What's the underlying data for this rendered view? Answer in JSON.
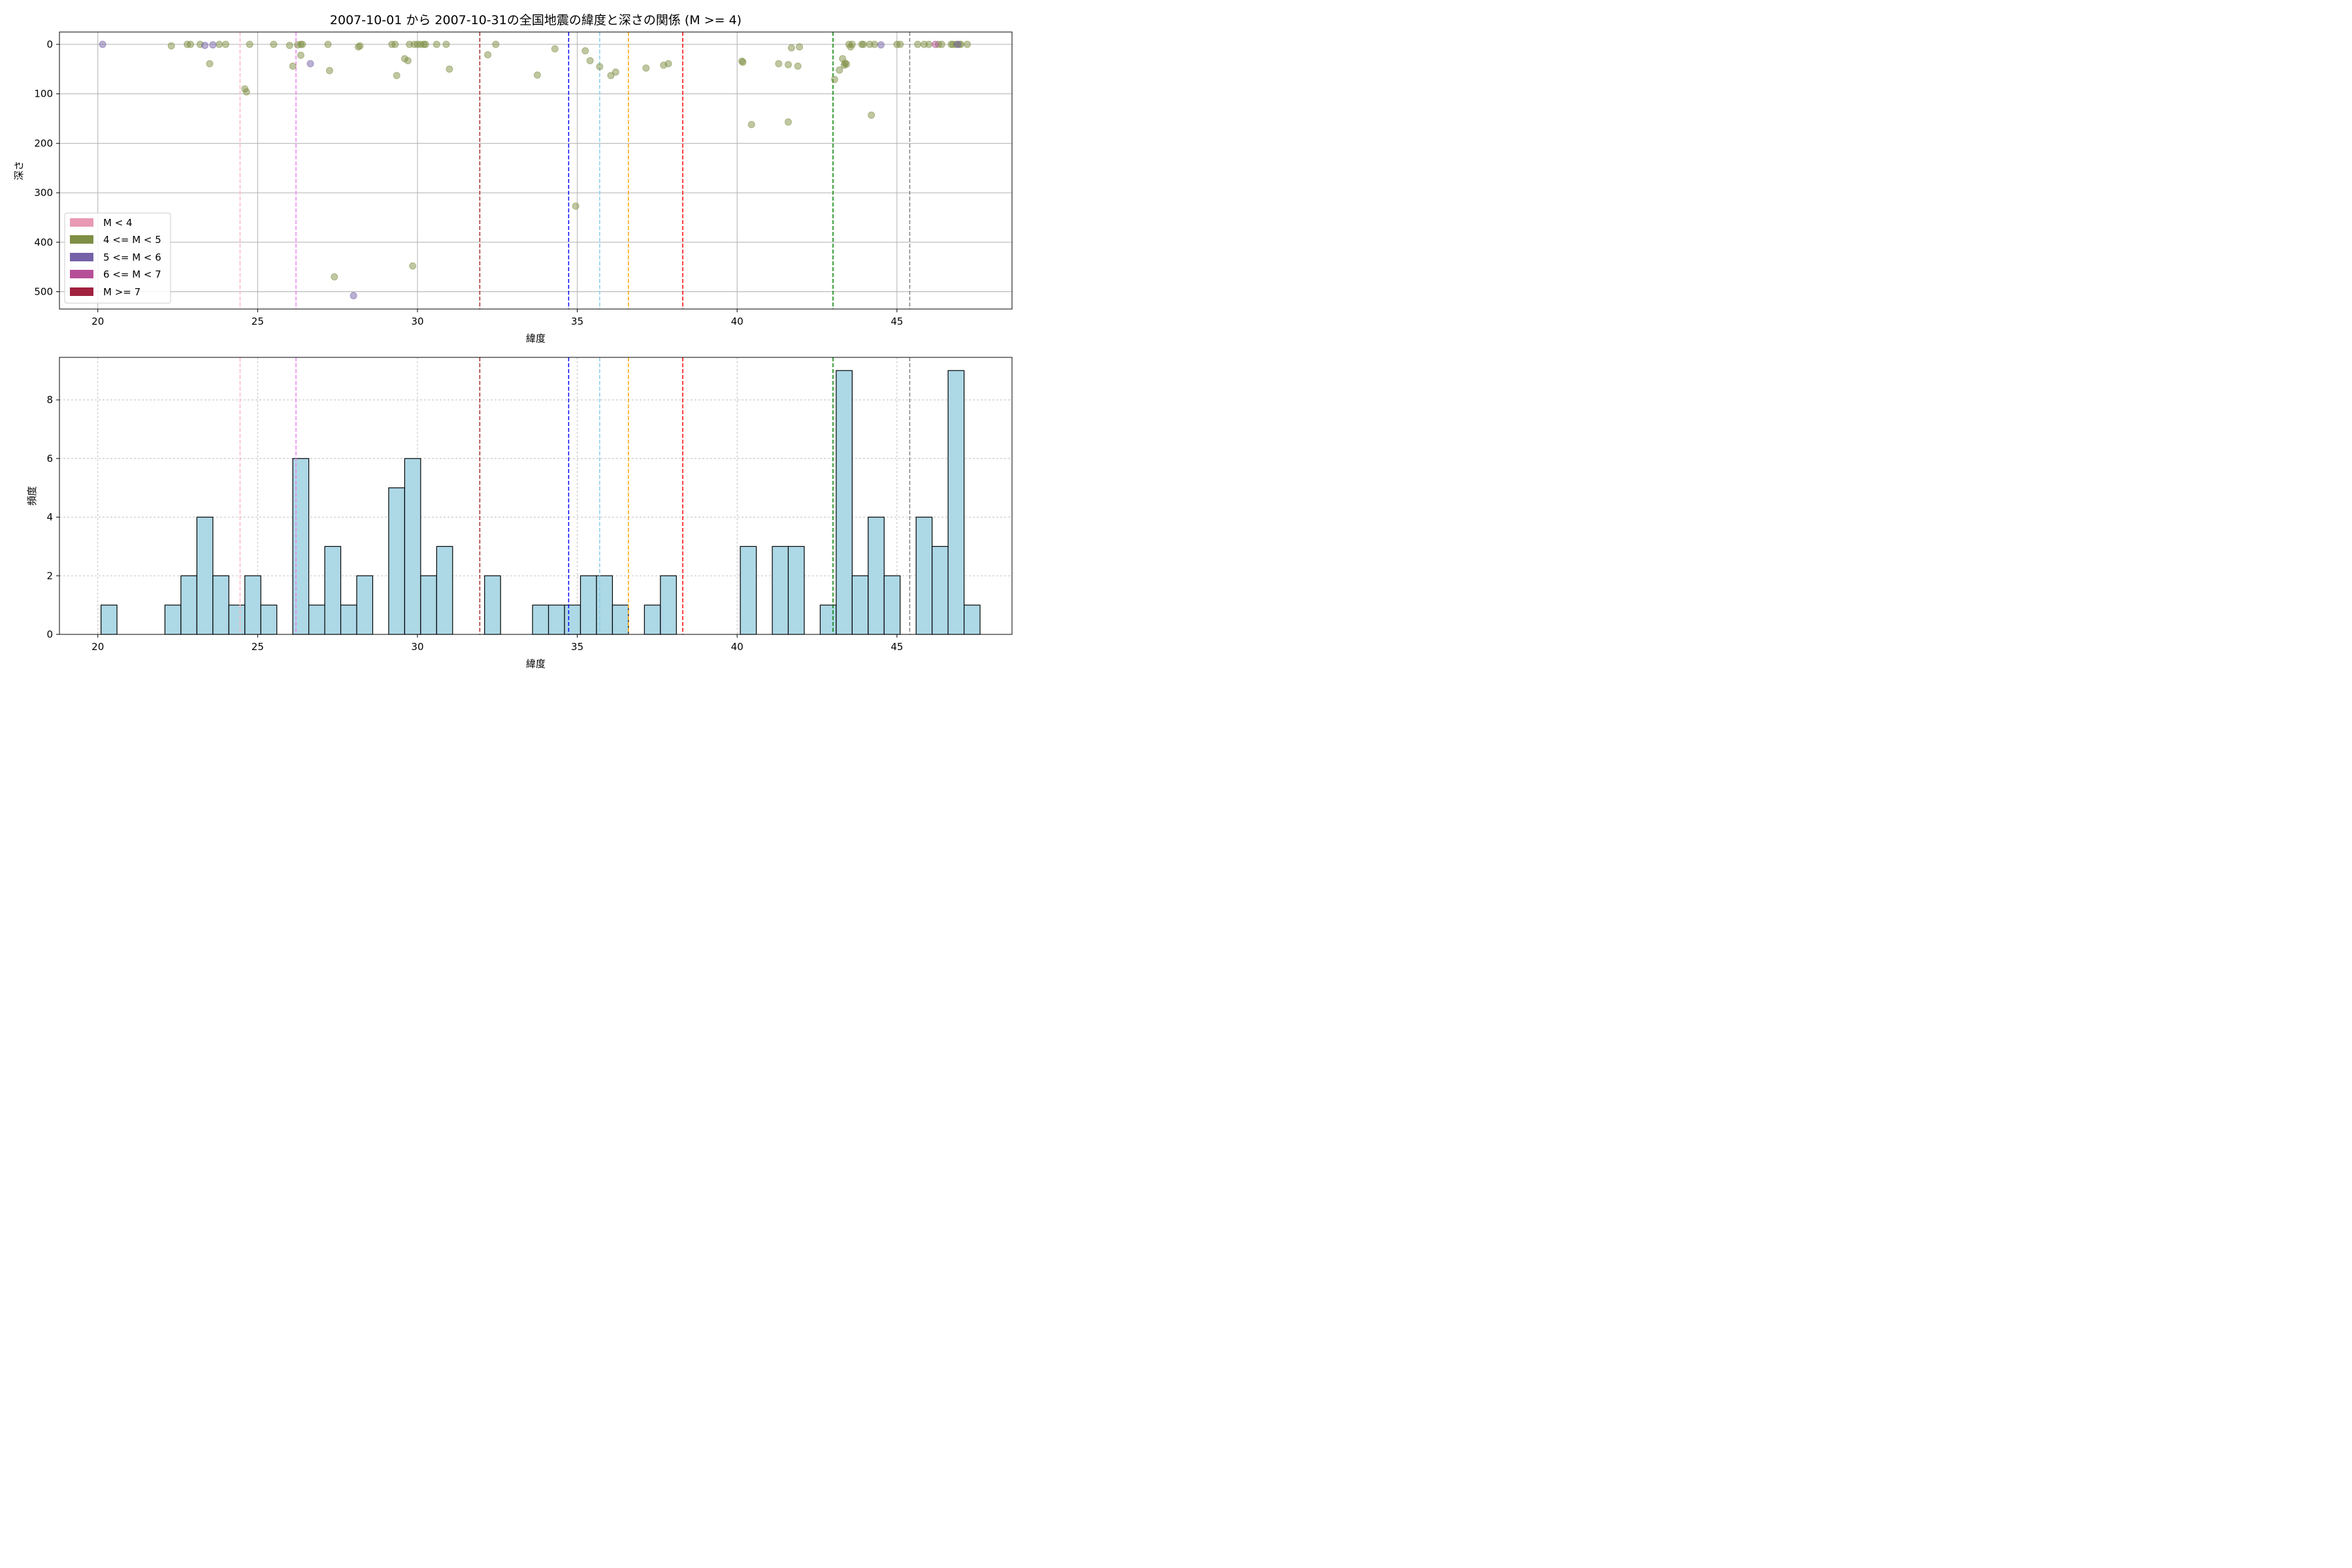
{
  "chart_data": [
    {
      "type": "scatter",
      "title": "2007-10-01 から 2007-10-31の全国地震の緯度と深さの関係 (M >= 4)",
      "xlabel": "緯度",
      "ylabel": "深さ",
      "xlim": [
        18.8,
        48.6
      ],
      "ylim": [
        535,
        -25
      ],
      "y_inverted": true,
      "xticks": [
        "20",
        "25",
        "30",
        "35",
        "40",
        "45"
      ],
      "yticks": [
        "0",
        "100",
        "200",
        "300",
        "400",
        "500"
      ],
      "grid": "on",
      "legend": {
        "placement": "lower-left",
        "entries": [
          {
            "label": "M < 4",
            "color": "#e89ab4"
          },
          {
            "label": "4 <= M < 5",
            "color": "#7f8f45"
          },
          {
            "label": "5 <= M < 6",
            "color": "#7561a8"
          },
          {
            "label": "6 <= M < 7",
            "color": "#b64f98"
          },
          {
            "label": "M >= 7",
            "color": "#a0223f"
          }
        ]
      },
      "series": [
        {
          "class": "4 <= M < 5",
          "color": "#7f8f45",
          "points": [
            [
              22.3,
              3
            ],
            [
              22.8,
              0
            ],
            [
              22.9,
              0
            ],
            [
              23.2,
              0
            ],
            [
              23.5,
              39
            ],
            [
              23.8,
              0
            ],
            [
              24.0,
              0
            ],
            [
              24.6,
              90
            ],
            [
              24.65,
              96
            ],
            [
              24.75,
              0
            ],
            [
              25.5,
              0
            ],
            [
              26.0,
              2
            ],
            [
              26.1,
              44
            ],
            [
              26.25,
              1
            ],
            [
              26.35,
              0
            ],
            [
              26.4,
              0
            ],
            [
              26.35,
              22
            ],
            [
              27.2,
              0
            ],
            [
              27.25,
              53
            ],
            [
              27.4,
              470
            ],
            [
              28.15,
              5
            ],
            [
              28.2,
              3
            ],
            [
              29.2,
              0
            ],
            [
              29.3,
              0
            ],
            [
              29.35,
              63
            ],
            [
              29.6,
              29
            ],
            [
              29.7,
              33
            ],
            [
              29.75,
              0
            ],
            [
              29.85,
              448
            ],
            [
              29.9,
              0
            ],
            [
              30.0,
              0
            ],
            [
              30.1,
              0
            ],
            [
              30.2,
              0
            ],
            [
              30.25,
              0
            ],
            [
              30.6,
              0
            ],
            [
              30.9,
              0
            ],
            [
              31.0,
              50
            ],
            [
              32.2,
              21
            ],
            [
              32.45,
              0
            ],
            [
              33.75,
              62
            ],
            [
              34.3,
              9
            ],
            [
              34.95,
              327
            ],
            [
              35.25,
              13
            ],
            [
              35.4,
              33
            ],
            [
              35.7,
              45
            ],
            [
              36.05,
              63
            ],
            [
              36.2,
              56
            ],
            [
              37.15,
              48
            ],
            [
              37.7,
              42
            ],
            [
              37.85,
              39
            ],
            [
              40.15,
              34
            ],
            [
              40.18,
              36
            ],
            [
              40.45,
              162
            ],
            [
              41.3,
              39
            ],
            [
              41.6,
              157
            ],
            [
              41.6,
              41
            ],
            [
              41.7,
              7
            ],
            [
              41.9,
              44
            ],
            [
              41.95,
              5
            ],
            [
              43.05,
              71
            ],
            [
              43.2,
              52
            ],
            [
              43.3,
              29
            ],
            [
              43.35,
              42
            ],
            [
              43.38,
              38
            ],
            [
              43.42,
              40
            ],
            [
              43.5,
              0
            ],
            [
              43.55,
              5
            ],
            [
              43.6,
              0
            ],
            [
              43.9,
              0
            ],
            [
              43.95,
              0
            ],
            [
              44.15,
              0
            ],
            [
              44.2,
              143
            ],
            [
              44.3,
              0
            ],
            [
              45.0,
              0
            ],
            [
              45.1,
              0
            ],
            [
              45.65,
              0
            ],
            [
              45.85,
              0
            ],
            [
              46.0,
              0
            ],
            [
              46.3,
              0
            ],
            [
              46.4,
              0
            ],
            [
              46.7,
              0
            ],
            [
              46.75,
              0
            ],
            [
              46.85,
              0
            ],
            [
              46.95,
              0
            ],
            [
              47.0,
              0
            ],
            [
              47.2,
              0
            ]
          ]
        },
        {
          "class": "5 <= M < 6",
          "color": "#7561a8",
          "points": [
            [
              20.15,
              0
            ],
            [
              23.35,
              2
            ],
            [
              23.6,
              1
            ],
            [
              26.65,
              39
            ],
            [
              28.0,
              508
            ],
            [
              44.5,
              1
            ],
            [
              46.9,
              0
            ]
          ]
        },
        {
          "class": "6 <= M < 7",
          "color": "#b64f98",
          "points": [
            [
              46.2,
              0
            ]
          ]
        }
      ],
      "vlines": [
        {
          "x": 24.45,
          "color": "#ffb6c1"
        },
        {
          "x": 26.2,
          "color": "#ee82ee"
        },
        {
          "x": 31.95,
          "color": "#a52a2a"
        },
        {
          "x": 34.73,
          "color": "#0000ff"
        },
        {
          "x": 35.7,
          "color": "#87ceeb"
        },
        {
          "x": 36.6,
          "color": "#ffa500"
        },
        {
          "x": 38.3,
          "color": "#ff0000"
        },
        {
          "x": 43.0,
          "color": "#008000"
        },
        {
          "x": 45.4,
          "color": "#808080"
        }
      ]
    },
    {
      "type": "bar",
      "subtype": "histogram",
      "xlabel": "緯度",
      "ylabel": "頻度",
      "xlim": [
        18.8,
        48.6
      ],
      "ylim": [
        0,
        9.45
      ],
      "xticks": [
        "20",
        "25",
        "30",
        "35",
        "40",
        "45"
      ],
      "yticks": [
        "0",
        "2",
        "4",
        "6",
        "8"
      ],
      "grid": "on",
      "bar_color": "#add8e6",
      "bin_start": 20.1,
      "bin_width": 0.5,
      "counts": [
        1,
        0,
        0,
        0,
        1,
        2,
        4,
        2,
        1,
        2,
        1,
        0,
        6,
        1,
        3,
        1,
        2,
        0,
        5,
        6,
        2,
        3,
        0,
        0,
        2,
        0,
        0,
        1,
        1,
        1,
        2,
        2,
        1,
        0,
        1,
        2,
        0,
        0,
        0,
        0,
        3,
        0,
        3,
        3,
        0,
        1,
        9,
        2,
        4,
        2,
        0,
        4,
        3,
        9,
        1
      ],
      "vlines": [
        {
          "x": 24.45,
          "color": "#ffb6c1"
        },
        {
          "x": 26.2,
          "color": "#ee82ee"
        },
        {
          "x": 31.95,
          "color": "#a52a2a"
        },
        {
          "x": 34.73,
          "color": "#0000ff"
        },
        {
          "x": 35.7,
          "color": "#87ceeb"
        },
        {
          "x": 36.6,
          "color": "#ffa500"
        },
        {
          "x": 38.3,
          "color": "#ff0000"
        },
        {
          "x": 43.0,
          "color": "#008000"
        },
        {
          "x": 45.4,
          "color": "#808080"
        }
      ]
    }
  ]
}
